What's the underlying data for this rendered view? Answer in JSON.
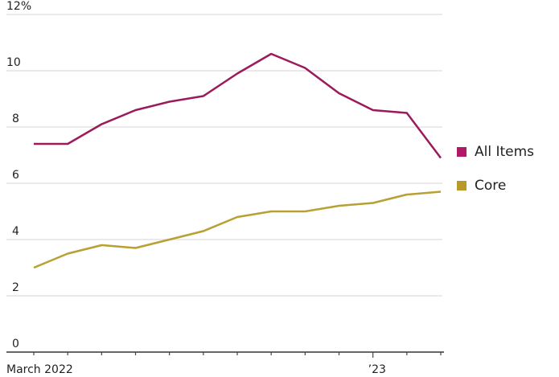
{
  "chart_data": {
    "type": "line",
    "title": "",
    "xlabel": "",
    "ylabel": "",
    "ylim": [
      0,
      12
    ],
    "yticks": [
      0,
      2,
      4,
      6,
      8,
      10,
      12
    ],
    "ytick_labels": [
      "0",
      "2",
      "4",
      "6",
      "8",
      "10",
      "12%"
    ],
    "x": [
      "Mar 2022",
      "Apr 2022",
      "May 2022",
      "Jun 2022",
      "Jul 2022",
      "Aug 2022",
      "Sep 2022",
      "Oct 2022",
      "Nov 2022",
      "Dec 2022",
      "Jan 2023",
      "Feb 2023",
      "Mar 2023"
    ],
    "xtick_labels": [
      {
        "index": 0,
        "label": "March 2022"
      },
      {
        "index": 10,
        "label": "’23"
      }
    ],
    "grid": true,
    "legend_position": "right",
    "series": [
      {
        "name": "All Items",
        "color": "#9c1a5c",
        "values": [
          7.4,
          7.4,
          8.1,
          8.6,
          8.9,
          9.1,
          9.9,
          10.6,
          10.1,
          9.2,
          8.6,
          8.5,
          6.9
        ]
      },
      {
        "name": "Core",
        "color": "#b8a032",
        "values": [
          3.0,
          3.5,
          3.8,
          3.7,
          4.0,
          4.3,
          4.8,
          5.0,
          5.0,
          5.2,
          5.3,
          5.6,
          5.7
        ]
      }
    ]
  },
  "legend": {
    "items": [
      {
        "label": "All Items",
        "color": "#b0196a"
      },
      {
        "label": "Core",
        "color": "#b89a2a"
      }
    ]
  }
}
